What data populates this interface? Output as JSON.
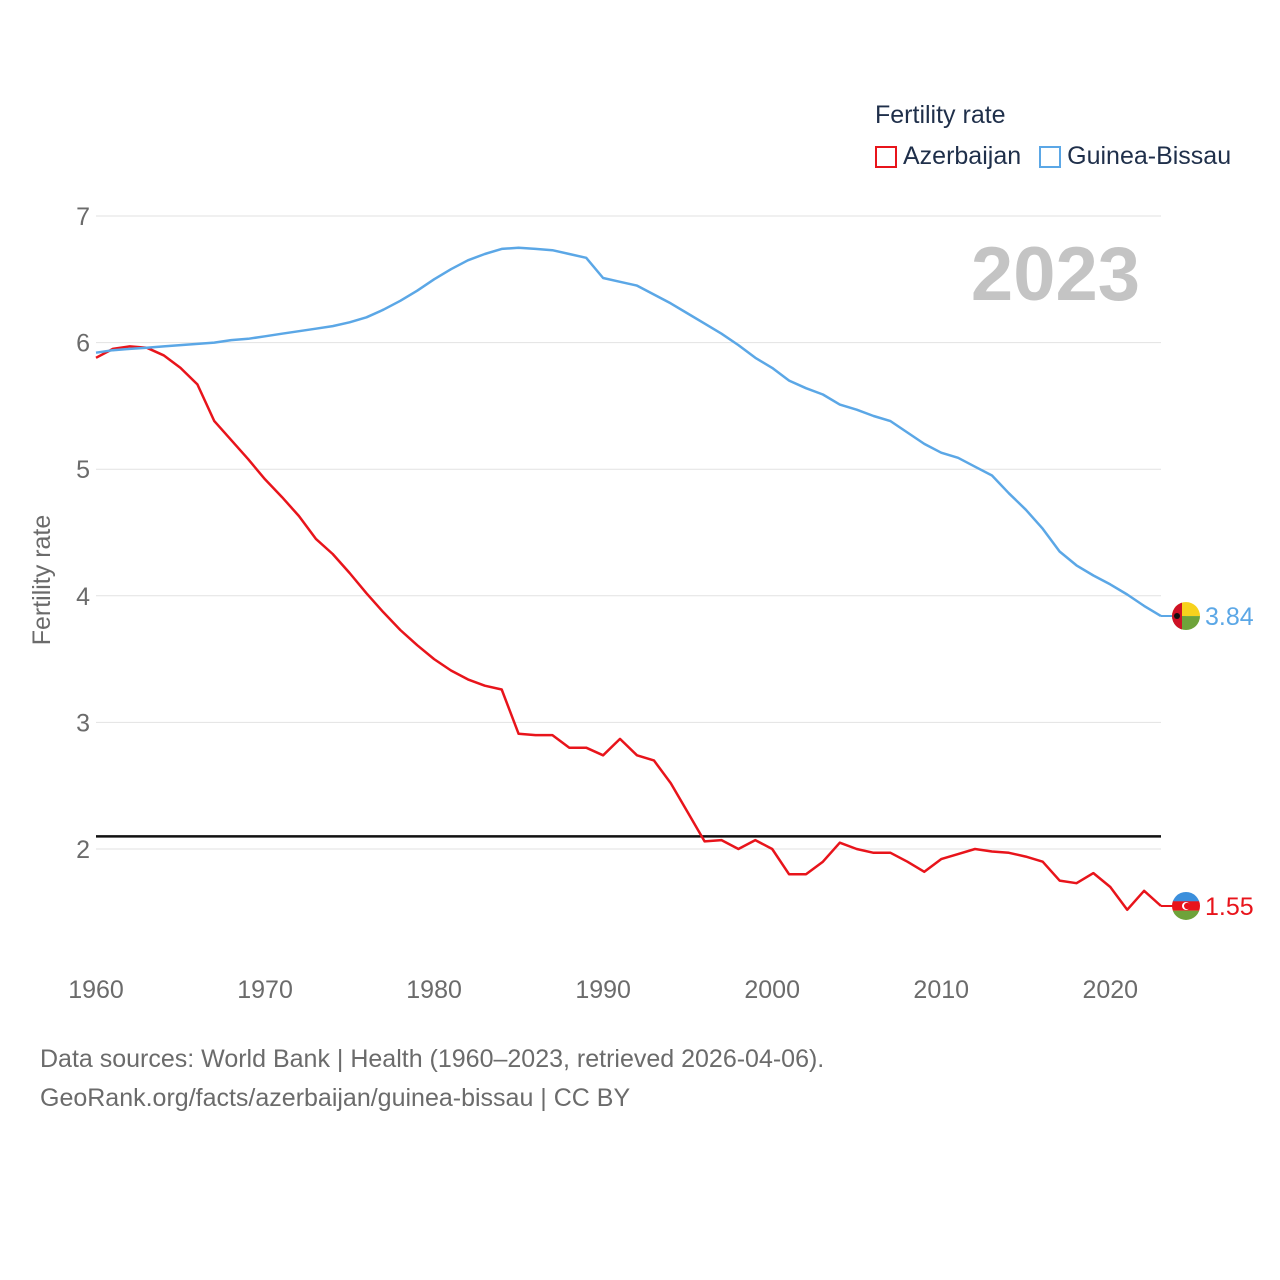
{
  "legend": {
    "title": "Fertility rate",
    "items": [
      {
        "label": "Azerbaijan",
        "color": "#e8141b"
      },
      {
        "label": "Guinea-Bissau",
        "color": "#5ba7e6"
      }
    ]
  },
  "year_label": "2023",
  "end_labels": {
    "guinea_bissau": "3.84",
    "azerbaijan": "1.55"
  },
  "footer": {
    "line1": "Data sources: World Bank | Health (1960–2023, retrieved 2026-04-06).",
    "line2": "GeoRank.org/facts/azerbaijan/guinea-bissau | CC BY"
  },
  "chart_data": {
    "type": "line",
    "title": "Fertility rate",
    "xlabel": "",
    "ylabel": "Fertility rate",
    "xlim": [
      1960,
      2023
    ],
    "ylim": [
      1.0,
      7.0
    ],
    "yticks": [
      2,
      3,
      4,
      5,
      6,
      7
    ],
    "xticks": [
      1960,
      1970,
      1980,
      1990,
      2000,
      2010,
      2020
    ],
    "reference_line": 2.1,
    "grid": true,
    "legend_position": "top-right",
    "x": [
      1960,
      1961,
      1962,
      1963,
      1964,
      1965,
      1966,
      1967,
      1968,
      1969,
      1970,
      1971,
      1972,
      1973,
      1974,
      1975,
      1976,
      1977,
      1978,
      1979,
      1980,
      1981,
      1982,
      1983,
      1984,
      1985,
      1986,
      1987,
      1988,
      1989,
      1990,
      1991,
      1992,
      1993,
      1994,
      1995,
      1996,
      1997,
      1998,
      1999,
      2000,
      2001,
      2002,
      2003,
      2004,
      2005,
      2006,
      2007,
      2008,
      2009,
      2010,
      2011,
      2012,
      2013,
      2014,
      2015,
      2016,
      2017,
      2018,
      2019,
      2020,
      2021,
      2022,
      2023
    ],
    "series": [
      {
        "name": "Azerbaijan",
        "color": "#e8141b",
        "values": [
          5.88,
          5.95,
          5.97,
          5.96,
          5.9,
          5.8,
          5.67,
          5.38,
          5.23,
          5.08,
          4.92,
          4.78,
          4.63,
          4.45,
          4.33,
          4.18,
          4.02,
          3.87,
          3.73,
          3.61,
          3.5,
          3.41,
          3.34,
          3.29,
          3.26,
          2.91,
          2.9,
          2.9,
          2.8,
          2.8,
          2.74,
          2.87,
          2.74,
          2.7,
          2.52,
          2.29,
          2.06,
          2.07,
          2.0,
          2.07,
          2.0,
          1.8,
          1.8,
          1.9,
          2.05,
          2.0,
          1.97,
          1.97,
          1.9,
          1.82,
          1.92,
          1.96,
          2.0,
          1.98,
          1.97,
          1.94,
          1.9,
          1.75,
          1.73,
          1.81,
          1.7,
          1.52,
          1.67,
          1.55
        ]
      },
      {
        "name": "Guinea-Bissau",
        "color": "#5ba7e6",
        "values": [
          5.92,
          5.94,
          5.95,
          5.96,
          5.97,
          5.98,
          5.99,
          6.0,
          6.02,
          6.03,
          6.05,
          6.07,
          6.09,
          6.11,
          6.13,
          6.16,
          6.2,
          6.26,
          6.33,
          6.41,
          6.5,
          6.58,
          6.65,
          6.7,
          6.74,
          6.75,
          6.74,
          6.73,
          6.7,
          6.67,
          6.51,
          6.48,
          6.45,
          6.38,
          6.31,
          6.23,
          6.15,
          6.07,
          5.98,
          5.88,
          5.8,
          5.7,
          5.64,
          5.59,
          5.51,
          5.47,
          5.42,
          5.38,
          5.29,
          5.2,
          5.13,
          5.09,
          5.02,
          4.95,
          4.81,
          4.68,
          4.53,
          4.35,
          4.24,
          4.16,
          4.09,
          4.01,
          3.92,
          3.84
        ]
      }
    ]
  }
}
